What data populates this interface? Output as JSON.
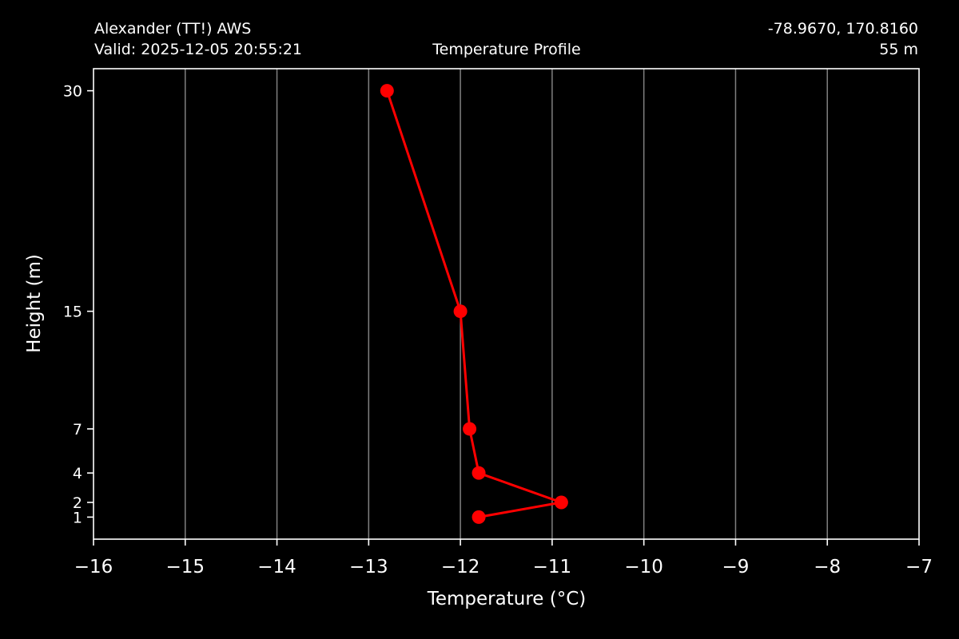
{
  "header": {
    "station": "Alexander (TT!) AWS",
    "valid": "Valid: 2025-12-05 20:55:21",
    "coords": "-78.9670, 170.8160",
    "elevation": "55 m"
  },
  "chart_data": {
    "type": "line",
    "title": "Temperature Profile",
    "xlabel": "Temperature ($^\\circ$C)",
    "xlabel_display": "Temperature (°C)",
    "ylabel": "Height (m)",
    "xlim": [
      -16,
      -7
    ],
    "x_ticks": [
      -16,
      -15,
      -14,
      -13,
      -12,
      -11,
      -10,
      -9,
      -8,
      -7
    ],
    "x_tick_labels": [
      "−16",
      "−15",
      "−14",
      "−13",
      "−12",
      "−11",
      "−10",
      "−9",
      "−8",
      "−7"
    ],
    "ylim": [
      -0.5,
      31.5
    ],
    "y_ticks": [
      1,
      2,
      4,
      7,
      15,
      30
    ],
    "y_tick_labels": [
      "1",
      "2",
      "4",
      "7",
      "15",
      "30"
    ],
    "grid": "vertical",
    "series": [
      {
        "color": "#ff0000",
        "marker": "circle",
        "points": [
          {
            "x": -11.8,
            "y": 1
          },
          {
            "x": -10.9,
            "y": 2
          },
          {
            "x": -11.8,
            "y": 4
          },
          {
            "x": -11.9,
            "y": 7
          },
          {
            "x": -12.0,
            "y": 15
          },
          {
            "x": -12.8,
            "y": 30
          }
        ]
      }
    ],
    "colors": {
      "background": "#000000",
      "axes": "#ffffff",
      "grid": "#808080",
      "series": "#ff0000"
    }
  }
}
